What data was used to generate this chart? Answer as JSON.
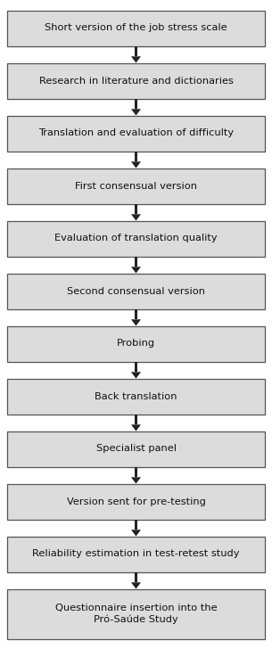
{
  "steps": [
    "Short version of the job stress scale",
    "Research in literature and dictionaries",
    "Translation and evaluation of difficulty",
    "First consensual version",
    "Evaluation of translation quality",
    "Second consensual version",
    "Probing",
    "Back translation",
    "Specialist panel",
    "Version sent for pre-testing",
    "Reliability estimation in test‑retest study",
    "Questionnaire insertion into the\nPró-Saúde Study"
  ],
  "box_facecolor": "#dcdcdc",
  "box_edgecolor": "#555555",
  "arrow_color": "#222222",
  "text_color": "#111111",
  "bg_color": "#ffffff",
  "font_size": 8.2,
  "fig_width": 3.05,
  "fig_height": 7.28,
  "dpi": 100
}
